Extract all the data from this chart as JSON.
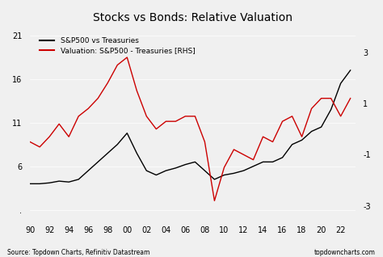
{
  "title": "Stocks vs Bonds: Relative Valuation",
  "source_text": "Source: Topdown Charts, Refinitiv Datastream",
  "website_text": "topdowncharts.com",
  "legend": [
    {
      "label": "S&P500 vs Treasuries",
      "color": "#000000"
    },
    {
      "label": "Valuation: S&P500 - Treasuries [RHS]",
      "color": "#cc0000"
    }
  ],
  "xlim": [
    1990,
    2023.5
  ],
  "xticks": [
    90,
    92,
    94,
    96,
    98,
    0,
    2,
    4,
    6,
    8,
    10,
    12,
    14,
    16,
    18,
    20,
    22
  ],
  "xtick_labels": [
    "90",
    "92",
    "94",
    "96",
    "98",
    "00",
    "02",
    "04",
    "06",
    "08",
    "10",
    "12",
    "14",
    "16",
    "18",
    "20",
    "22"
  ],
  "ylim_left": [
    0,
    22
  ],
  "yticks_left": [
    1,
    6,
    11,
    16,
    21
  ],
  "ytick_labels_left": [
    ".",
    "6",
    "11",
    "16",
    "21"
  ],
  "ylim_right": [
    -3.5,
    4.0
  ],
  "yticks_right": [
    -3,
    -1,
    1,
    3
  ],
  "ytick_labels_right": [
    "-3",
    "-1",
    "1",
    "3"
  ],
  "bg_color": "#f0f0f0",
  "black_x": [
    1990,
    1991,
    1992,
    1993,
    1994,
    1995,
    1996,
    1997,
    1998,
    1999,
    2000,
    2001,
    2002,
    2003,
    2004,
    2005,
    2006,
    2007,
    2008,
    2009,
    2010,
    2011,
    2012,
    2013,
    2014,
    2015,
    2016,
    2017,
    2018,
    2019,
    2020,
    2021,
    2022,
    2023
  ],
  "black_y": [
    4.0,
    4.0,
    4.1,
    4.3,
    4.2,
    4.5,
    5.5,
    6.5,
    7.5,
    8.5,
    9.8,
    7.5,
    5.5,
    5.0,
    5.5,
    5.8,
    6.2,
    6.5,
    5.5,
    4.5,
    5.0,
    5.2,
    5.5,
    6.0,
    6.5,
    6.5,
    7.0,
    8.5,
    9.0,
    10.0,
    10.5,
    12.5,
    15.5,
    17.0
  ],
  "red_x": [
    1990,
    1991,
    1992,
    1993,
    1994,
    1995,
    1996,
    1997,
    1998,
    1999,
    2000,
    2001,
    2002,
    2003,
    2004,
    2005,
    2006,
    2007,
    2008,
    2009,
    2010,
    2011,
    2012,
    2013,
    2014,
    2015,
    2016,
    2017,
    2018,
    2019,
    2020,
    2021,
    2022,
    2023
  ],
  "red_y": [
    -0.5,
    -0.7,
    -0.3,
    0.2,
    -0.3,
    0.5,
    0.8,
    1.2,
    1.8,
    2.5,
    2.8,
    1.5,
    0.5,
    0.0,
    0.3,
    0.3,
    0.5,
    0.5,
    -0.5,
    -2.8,
    -1.5,
    -0.8,
    -1.0,
    -1.2,
    -0.3,
    -0.5,
    0.3,
    0.5,
    -0.3,
    0.8,
    1.2,
    1.2,
    0.5,
    1.2
  ]
}
